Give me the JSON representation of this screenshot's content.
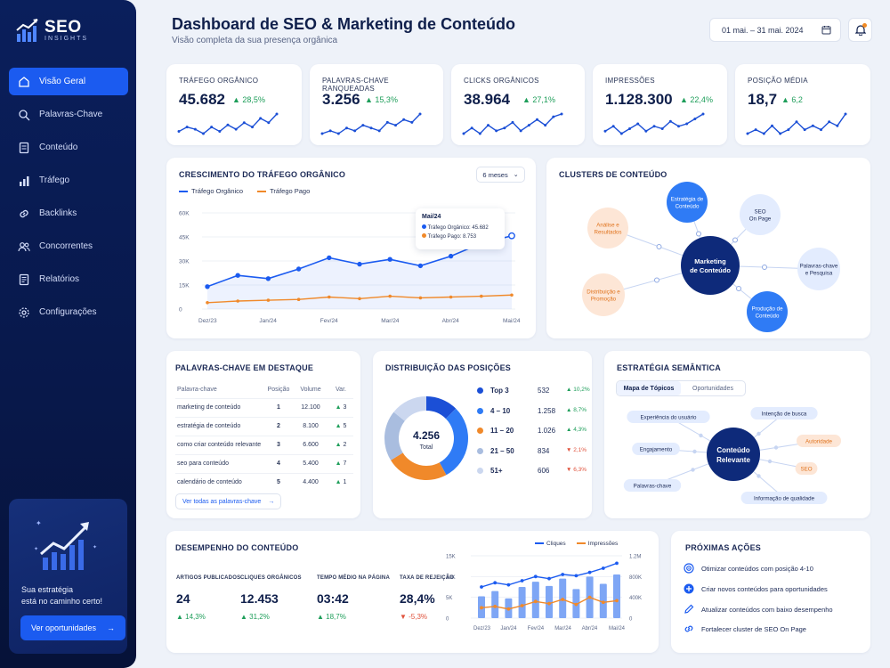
{
  "brand": {
    "name": "SEO",
    "sub": "INSIGHTS"
  },
  "sidebar": {
    "items": [
      {
        "label": "Visão Geral",
        "icon": "dashboard-icon",
        "active": true
      },
      {
        "label": "Palavras-Chave",
        "icon": "search-icon"
      },
      {
        "label": "Conteúdo",
        "icon": "document-icon"
      },
      {
        "label": "Tráfego",
        "icon": "bar-chart-icon"
      },
      {
        "label": "Backlinks",
        "icon": "link-icon"
      },
      {
        "label": "Concorrentes",
        "icon": "users-icon"
      },
      {
        "label": "Relatórios",
        "icon": "report-icon"
      },
      {
        "label": "Configurações",
        "icon": "gear-icon"
      }
    ],
    "promo": {
      "text": "Sua estratégia\nestá no caminho certo!",
      "button": "Ver oportunidades"
    }
  },
  "header": {
    "title": "Dashboard de SEO & Marketing de Conteúdo",
    "subtitle": "Visão completa da sua presença orgânica",
    "date_range": "01 mai. – 31 mai. 2024"
  },
  "kpis": [
    {
      "label": "TRÁFEGO ORGÂNICO",
      "value": "45.682",
      "delta": "28,5%",
      "spark": [
        5,
        7,
        6,
        4,
        7,
        5,
        8,
        6,
        9,
        7,
        11,
        9,
        13
      ]
    },
    {
      "label": "PALAVRAS-CHAVE RANQUEADAS",
      "value": "3.256",
      "delta": "15,3%",
      "spark": [
        5,
        6,
        5,
        7,
        6,
        8,
        7,
        6,
        9,
        8,
        10,
        9,
        12
      ]
    },
    {
      "label": "CLICKS ORGÂNICOS",
      "value": "38.964",
      "delta": "27,1%",
      "spark": [
        5,
        7,
        5,
        8,
        6,
        7,
        9,
        6,
        8,
        10,
        8,
        11,
        12
      ]
    },
    {
      "label": "IMPRESSÕES",
      "value": "1.128.300",
      "delta": "22,4%",
      "spark": [
        6,
        8,
        5,
        7,
        9,
        6,
        8,
        7,
        10,
        8,
        9,
        11,
        13
      ]
    },
    {
      "label": "POSIÇÃO MÉDIA",
      "value": "18,7",
      "delta": "6,2",
      "spark": [
        6,
        7,
        6,
        8,
        6,
        7,
        9,
        7,
        8,
        7,
        9,
        8,
        11
      ]
    }
  ],
  "traffic": {
    "title": "CRESCIMENTO DO TRÁFEGO ORGÂNICO",
    "range_select": "6 meses",
    "tooltip": {
      "title": "Mai/24",
      "line1": "Tráfego Orgânico: 45.682",
      "line2": "Tráfego Pago: 8.753"
    },
    "chart_data": {
      "type": "line",
      "x": [
        "Dez/23",
        "",
        "Jan/24",
        "",
        "Fev/24",
        "",
        "Mar/24",
        "",
        "Abr/24",
        "",
        "Mai/24"
      ],
      "tick_labels": [
        "Dez/23",
        "Jan/24",
        "Fev/24",
        "Mar/24",
        "Abr/24",
        "Mai/24"
      ],
      "yticks": [
        "60K",
        "45K",
        "30K",
        "15K",
        "0"
      ],
      "ylim": [
        0,
        60000
      ],
      "series": [
        {
          "name": "Tráfego Orgânico",
          "color": "#1b5bf0",
          "values": [
            14000,
            21000,
            19000,
            25000,
            32000,
            28000,
            31000,
            27000,
            33000,
            41000,
            45682
          ]
        },
        {
          "name": "Tráfego Pago",
          "color": "#f0892a",
          "values": [
            4000,
            5000,
            5500,
            6000,
            7500,
            6500,
            8000,
            7000,
            7500,
            8000,
            8753
          ]
        }
      ]
    }
  },
  "clusters": {
    "title": "CLUSTERS DE CONTEÚDO",
    "center": "Marketing\nde Conteúdo",
    "nodes": [
      {
        "label": "Estratégia de\nConteúdo",
        "tone": "blue"
      },
      {
        "label": "SEO\nOn Page",
        "tone": "light"
      },
      {
        "label": "Palavras-chave\ne Pesquisa",
        "tone": "light"
      },
      {
        "label": "Produção de\nConteúdo",
        "tone": "blue"
      },
      {
        "label": "Distribuição e\nPromoção",
        "tone": "orange"
      },
      {
        "label": "Análise e\nResultados",
        "tone": "orange"
      }
    ]
  },
  "keywords": {
    "title": "PALAVRAS-CHAVE EM DESTAQUE",
    "columns": [
      "Palavra-chave",
      "Posição",
      "Volume",
      "Var."
    ],
    "rows": [
      [
        "marketing de conteúdo",
        "1",
        "12.100",
        "3"
      ],
      [
        "estratégia de conteúdo",
        "2",
        "8.100",
        "5"
      ],
      [
        "como criar conteúdo relevante",
        "3",
        "6.600",
        "2"
      ],
      [
        "seo para conteúdo",
        "4",
        "5.400",
        "7"
      ],
      [
        "calendário de conteúdo",
        "5",
        "4.400",
        "1"
      ]
    ],
    "link": "Ver todas as palavras-chave"
  },
  "positions": {
    "title": "DISTRIBUIÇÃO DAS POSIÇÕES",
    "total": "4.256",
    "total_label": "Total",
    "chart_data": {
      "type": "pie",
      "categories": [
        "Top 3",
        "4 – 10",
        "11 – 20",
        "21 – 50",
        "51+"
      ],
      "values": [
        532,
        1258,
        1026,
        834,
        606
      ],
      "changes": [
        "10,2%",
        "8,7%",
        "4,3%",
        "2,1%",
        "6,3%"
      ],
      "change_dir": [
        "up",
        "up",
        "up",
        "down",
        "down"
      ],
      "colors": [
        "#1b4fd6",
        "#2f7bf5",
        "#f0892a",
        "#a9bddf",
        "#cbd7ef"
      ]
    }
  },
  "semantic": {
    "title": "ESTRATÉGIA SEMÂNTICA",
    "tabs": [
      "Mapa de Tópicos",
      "Oportunidades"
    ],
    "center": "Conteúdo\nRelevante",
    "nodes": [
      "Experiência do usuário",
      "Intenção de busca",
      "Engajamento",
      "Autoridade",
      "SEO",
      "Palavras-chave",
      "Informação de qualidade"
    ]
  },
  "performance": {
    "title": "DESEMPENHO DO CONTEÚDO",
    "metrics": [
      {
        "label": "ARTIGOS PUBLICADOS",
        "value": "24",
        "delta": "14,3%",
        "dir": "up"
      },
      {
        "label": "CLIQUES ORGÂNICOS",
        "value": "12.453",
        "delta": "31,2%",
        "dir": "up"
      },
      {
        "label": "TEMPO MÉDIO NA PÁGINA",
        "value": "03:42",
        "delta": "18,7%",
        "dir": "up"
      },
      {
        "label": "TAXA DE REJEIÇÃO",
        "value": "28,4%",
        "delta": "-5,3%",
        "dir": "down"
      }
    ],
    "chart_data": {
      "type": "bar",
      "categories": [
        "Dez/23",
        "",
        "Jan/24",
        "",
        "Fev/24",
        "",
        "Mar/24",
        "",
        "Abr/24",
        "",
        "Mai/24"
      ],
      "tick_labels": [
        "Dez/23",
        "Jan/24",
        "Fev/24",
        "Mar/24",
        "Abr/24",
        "Mai/24"
      ],
      "yticks_left": [
        "15K",
        "10K",
        "5K",
        "0"
      ],
      "yticks_right": [
        "1.2M",
        "800K",
        "400K",
        "0"
      ],
      "series": [
        {
          "name": "Cliques",
          "color": "#1b5bf0",
          "kind": "line",
          "values": [
            7500,
            8500,
            8000,
            9000,
            10000,
            9500,
            10500,
            10200,
            11000,
            12000,
            13200
          ]
        },
        {
          "name": "Impressões",
          "color": "#f0892a",
          "kind": "line",
          "values": [
            2500,
            2800,
            2200,
            3000,
            4000,
            3500,
            4500,
            3300,
            5000,
            3800,
            4200
          ]
        },
        {
          "name": "Impressões (barras)",
          "color": "#7ea6f5",
          "kind": "bar",
          "values": [
            420000,
            520000,
            380000,
            600000,
            700000,
            620000,
            760000,
            560000,
            800000,
            660000,
            840000
          ]
        }
      ],
      "legend": [
        "Cliques",
        "Impressões"
      ]
    }
  },
  "actions": {
    "title": "PRÓXIMAS AÇÕES",
    "items": [
      {
        "label": "Otimizar conteúdos com posição 4-10",
        "icon": "target-icon"
      },
      {
        "label": "Criar novos conteúdos para oportunidades",
        "icon": "plus-icon"
      },
      {
        "label": "Atualizar conteúdos com baixo desempenho",
        "icon": "pencil-icon"
      },
      {
        "label": "Fortalecer cluster de SEO On Page",
        "icon": "link-icon"
      }
    ]
  }
}
